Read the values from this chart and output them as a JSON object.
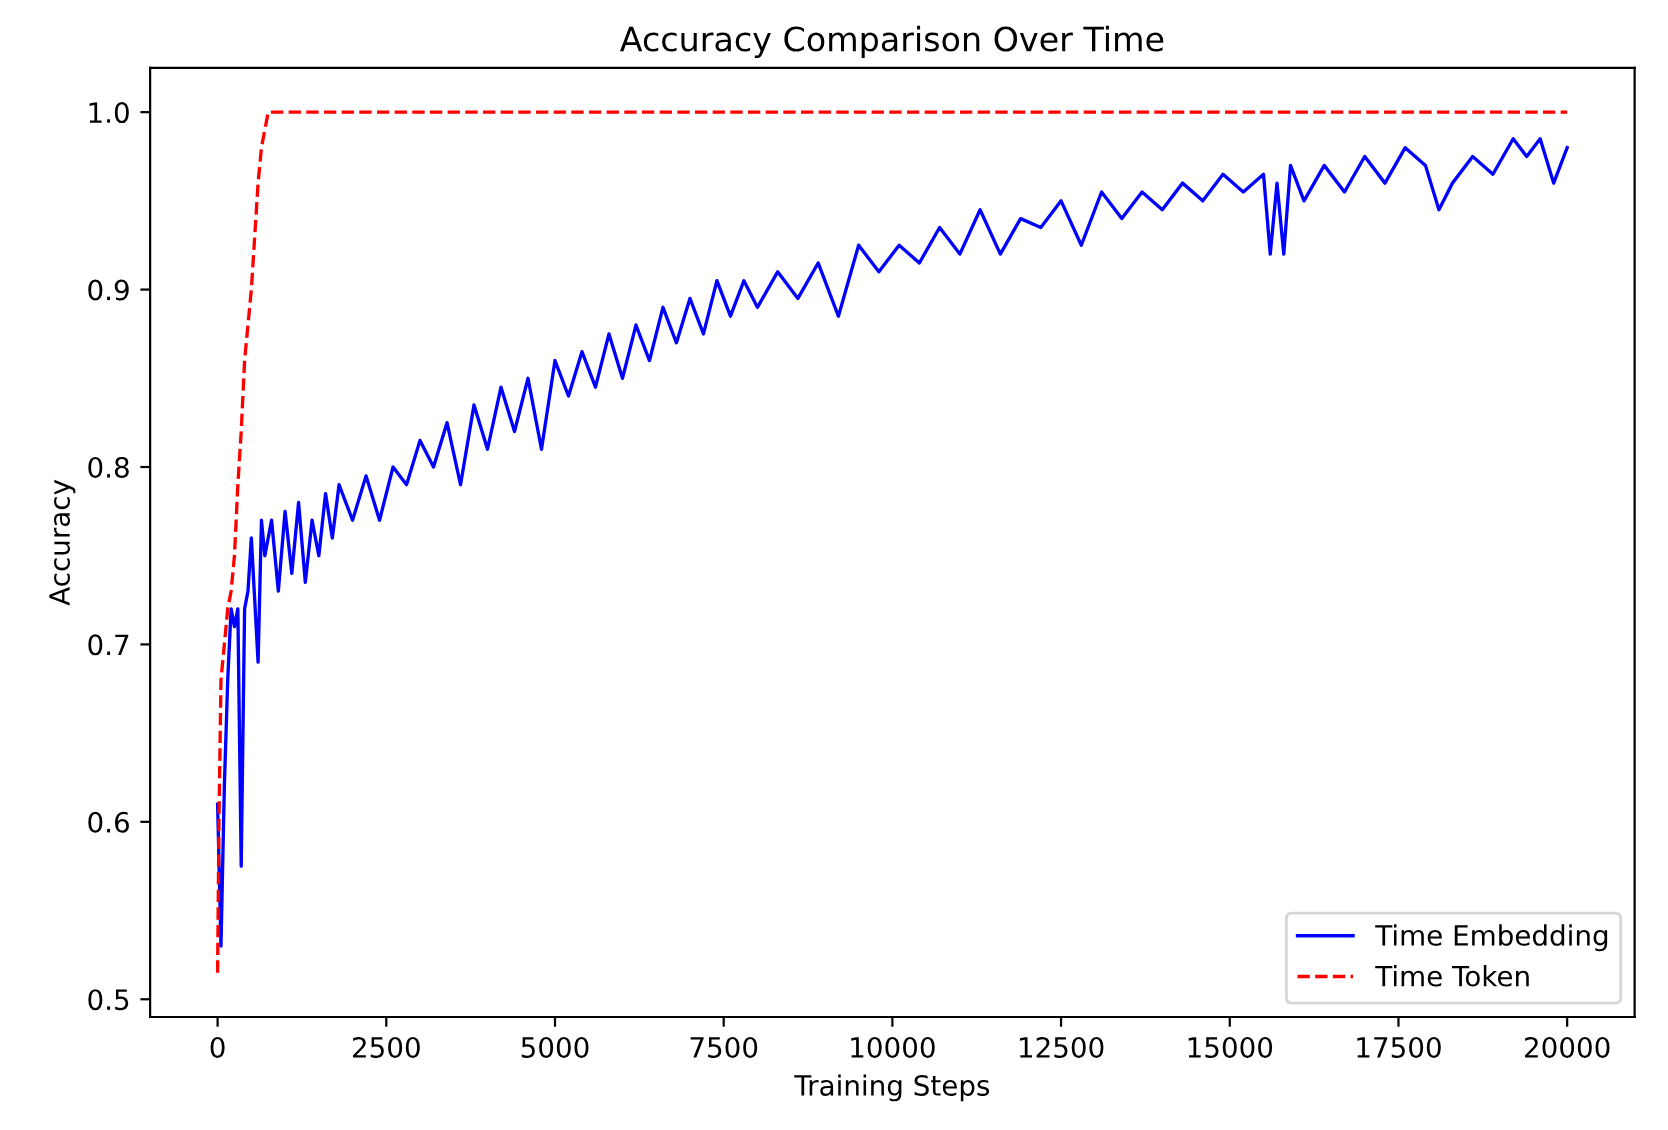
{
  "chart_data": {
    "type": "line",
    "title": "Accuracy Comparison Over Time",
    "xlabel": "Training Steps",
    "ylabel": "Accuracy",
    "xlim": [
      -1000,
      21000
    ],
    "ylim": [
      0.49,
      1.025
    ],
    "xticks": [
      0,
      2500,
      5000,
      7500,
      10000,
      12500,
      15000,
      17500,
      20000
    ],
    "yticks": [
      0.5,
      0.6,
      0.7,
      0.8,
      0.9,
      {
        "value": 1,
        "label": "1.0"
      }
    ],
    "grid": false,
    "legend": "bottom right",
    "series": [
      {
        "name": "Time Embedding",
        "color": "#0000ff",
        "line_style": "solid",
        "x": [
          0,
          50,
          100,
          150,
          200,
          250,
          300,
          350,
          400,
          450,
          500,
          600,
          650,
          700,
          800,
          900,
          1000,
          1100,
          1200,
          1300,
          1400,
          1500,
          1600,
          1700,
          1800,
          2000,
          2200,
          2400,
          2600,
          2800,
          3000,
          3200,
          3400,
          3600,
          3800,
          4000,
          4200,
          4400,
          4600,
          4800,
          5000,
          5200,
          5400,
          5600,
          5800,
          6000,
          6200,
          6400,
          6600,
          6800,
          7000,
          7200,
          7400,
          7600,
          7800,
          8000,
          8300,
          8600,
          8900,
          9200,
          9500,
          9800,
          10100,
          10400,
          10700,
          11000,
          11300,
          11600,
          11900,
          12200,
          12500,
          12800,
          13100,
          13400,
          13700,
          14000,
          14300,
          14600,
          14900,
          15200,
          15500,
          15600,
          15700,
          15800,
          15900,
          16100,
          16400,
          16700,
          17000,
          17300,
          17600,
          17900,
          18100,
          18300,
          18600,
          18900,
          19200,
          19400,
          19600,
          19800,
          20000
        ],
        "values": [
          0.61,
          0.53,
          0.62,
          0.68,
          0.72,
          0.71,
          0.72,
          0.575,
          0.72,
          0.73,
          0.76,
          0.69,
          0.77,
          0.75,
          0.77,
          0.73,
          0.775,
          0.74,
          0.78,
          0.735,
          0.77,
          0.75,
          0.785,
          0.76,
          0.79,
          0.77,
          0.795,
          0.77,
          0.8,
          0.79,
          0.815,
          0.8,
          0.825,
          0.79,
          0.835,
          0.81,
          0.845,
          0.82,
          0.85,
          0.81,
          0.86,
          0.84,
          0.865,
          0.845,
          0.875,
          0.85,
          0.88,
          0.86,
          0.89,
          0.87,
          0.895,
          0.875,
          0.905,
          0.885,
          0.905,
          0.89,
          0.91,
          0.895,
          0.915,
          0.885,
          0.925,
          0.91,
          0.925,
          0.915,
          0.935,
          0.92,
          0.945,
          0.92,
          0.94,
          0.935,
          0.95,
          0.925,
          0.955,
          0.94,
          0.955,
          0.945,
          0.96,
          0.95,
          0.965,
          0.955,
          0.965,
          0.92,
          0.96,
          0.92,
          0.97,
          0.95,
          0.97,
          0.955,
          0.975,
          0.96,
          0.98,
          0.97,
          0.945,
          0.96,
          0.975,
          0.965,
          0.985,
          0.975,
          0.985,
          0.96,
          0.98
        ]
      },
      {
        "name": "Time Token",
        "color": "#ff0000",
        "line_style": "dashed",
        "x": [
          0,
          20,
          50,
          100,
          150,
          200,
          250,
          300,
          350,
          400,
          450,
          500,
          550,
          600,
          650,
          700,
          750,
          20000
        ],
        "values": [
          0.515,
          0.6,
          0.68,
          0.7,
          0.72,
          0.73,
          0.75,
          0.79,
          0.82,
          0.86,
          0.88,
          0.9,
          0.93,
          0.96,
          0.98,
          0.99,
          1.0,
          1.0
        ]
      }
    ]
  }
}
